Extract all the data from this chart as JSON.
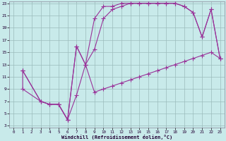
{
  "background_color": "#c8eaea",
  "grid_color": "#9bbcbc",
  "line_color": "#993399",
  "xlabel": "Windchill (Refroidissement éolien,°C)",
  "xlim": [
    0,
    23
  ],
  "ylim": [
    3,
    23
  ],
  "xticks": [
    0,
    1,
    2,
    3,
    4,
    5,
    6,
    7,
    8,
    9,
    10,
    11,
    12,
    13,
    14,
    15,
    16,
    17,
    18,
    19,
    20,
    21,
    22,
    23
  ],
  "yticks": [
    3,
    5,
    7,
    9,
    11,
    13,
    15,
    17,
    19,
    21,
    23
  ],
  "curve1_x": [
    1,
    1,
    3,
    4,
    5,
    5,
    6,
    7,
    8,
    9,
    10,
    11,
    12,
    13,
    14,
    15,
    16,
    17,
    18,
    19,
    20,
    21,
    22,
    23
  ],
  "curve1_y": [
    12,
    9,
    7,
    6.5,
    6.5,
    6.5,
    4,
    8,
    13,
    15.5,
    20.5,
    22,
    22.5,
    23,
    23,
    23,
    23,
    23,
    23,
    22.5,
    21.5,
    17.5,
    22,
    14
  ],
  "curve2_x": [
    1,
    3,
    4,
    5,
    6,
    7,
    8,
    9,
    10,
    11,
    12,
    13,
    14,
    15,
    16,
    17,
    18,
    19,
    20,
    21,
    22,
    23
  ],
  "curve2_y": [
    12,
    7,
    6.5,
    6.5,
    4,
    16,
    13,
    8.5,
    9,
    9.5,
    10,
    10.5,
    11,
    11.5,
    12,
    12.5,
    13,
    13.5,
    14,
    14.5,
    15,
    14
  ],
  "curve3_x": [
    1,
    3,
    4,
    5,
    6,
    7,
    8,
    9,
    10,
    11,
    12,
    13,
    14,
    15,
    16,
    17,
    18,
    19,
    20,
    21,
    22,
    23
  ],
  "curve3_y": [
    12,
    7,
    6.5,
    6.5,
    4,
    16,
    13,
    20.5,
    22.5,
    22.5,
    23,
    23,
    23,
    23,
    23,
    23,
    23,
    22.5,
    21.5,
    17.5,
    22,
    14
  ]
}
